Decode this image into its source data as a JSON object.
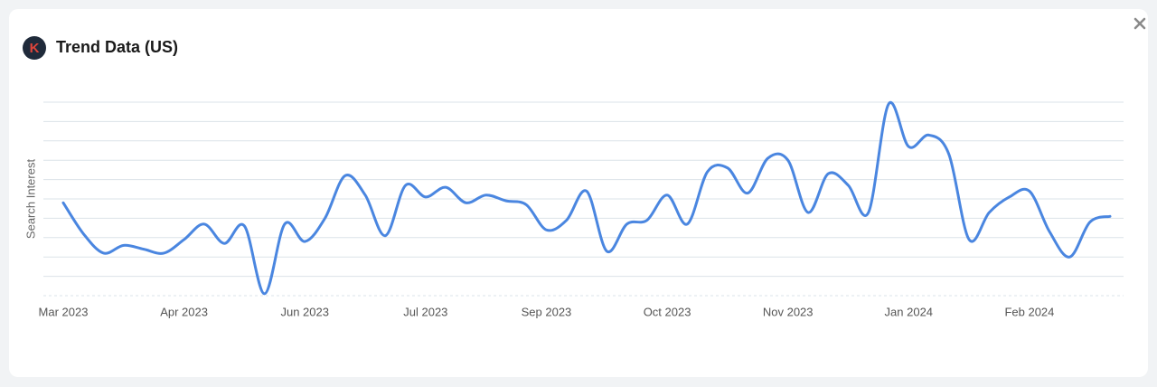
{
  "header": {
    "logo": "K",
    "title": "Trend Data (US)"
  },
  "chart_data": {
    "type": "line",
    "y_label": "Search Interest",
    "categories": [
      "Mar 2023",
      null,
      null,
      null,
      null,
      null,
      "Apr 2023",
      null,
      null,
      null,
      null,
      null,
      "Jun 2023",
      null,
      null,
      null,
      null,
      null,
      "Jul 2023",
      null,
      null,
      null,
      null,
      null,
      "Sep 2023",
      null,
      null,
      null,
      null,
      null,
      "Oct 2023",
      null,
      null,
      null,
      null,
      null,
      "Nov 2023",
      null,
      null,
      null,
      null,
      null,
      "Jan 2024",
      null,
      null,
      null,
      null,
      null,
      "Feb 2024",
      null,
      null,
      null,
      null
    ],
    "series": [
      {
        "name": "Search Interest",
        "color": "#4a86e0",
        "values": [
          48,
          32,
          22,
          26,
          24,
          22,
          29,
          37,
          27,
          36,
          1,
          37,
          28,
          40,
          62,
          52,
          31,
          57,
          51,
          56,
          48,
          52,
          49,
          47,
          34,
          39,
          54,
          23,
          37,
          39,
          52,
          37,
          64,
          66,
          53,
          71,
          70,
          43,
          63,
          57,
          43,
          99,
          77,
          83,
          73,
          29,
          43,
          51,
          54,
          33,
          20,
          38,
          41
        ]
      }
    ],
    "ylim": [
      0,
      100
    ],
    "yticks": [
      0,
      10,
      20,
      30,
      40,
      50,
      60,
      70,
      80,
      90,
      100
    ],
    "grid": true
  }
}
